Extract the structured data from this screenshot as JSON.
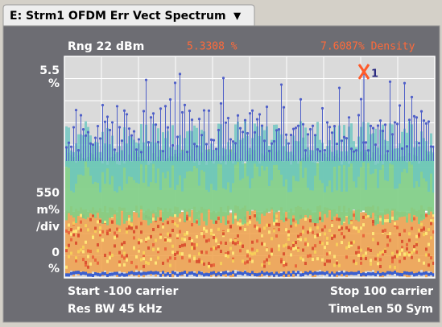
{
  "tab": {
    "title": "E: Strm1 OFDM Err Vect Spectrum",
    "menu_icon": "▼"
  },
  "header": {
    "range": "Rng 22 dBm",
    "marker_value": "5.3308 %",
    "density": "7.6087% Density"
  },
  "y_axis": {
    "top": "5.5",
    "top_unit": "%",
    "scale": "550",
    "scale_unit": "m%",
    "scale_per": "/div",
    "bottom": "0",
    "bottom_unit": "%"
  },
  "marker": {
    "label": "1"
  },
  "footer": {
    "start": "Start -100 carrier",
    "stop": "Stop 100 carrier",
    "res_bw": "Res BW 45 kHz",
    "time_len": "TimeLen 50 Sym"
  }
}
